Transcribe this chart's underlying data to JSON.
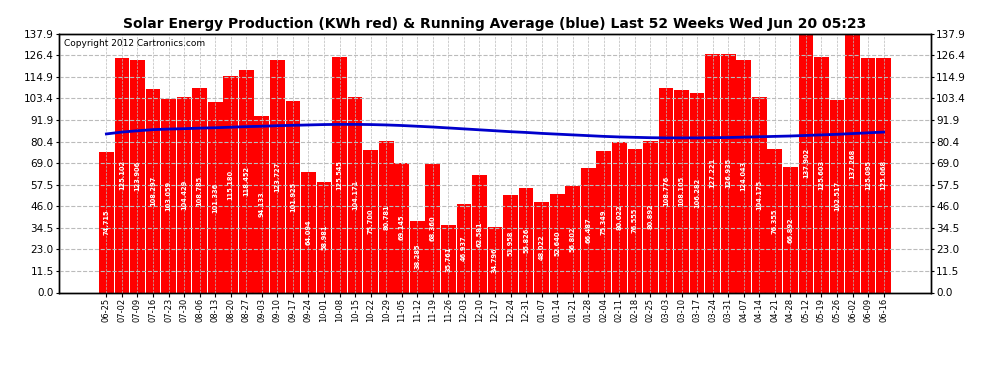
{
  "title": "Solar Energy Production (KWh red) & Running Average (blue) Last 52 Weeks Wed Jun 20 05:23",
  "copyright": "Copyright 2012 Cartronics.com",
  "bar_color": "#ff0000",
  "avg_line_color": "#0000cc",
  "background_color": "#ffffff",
  "plot_bg_color": "#ffffff",
  "grid_color": "#bbbbbb",
  "ylim": [
    0.0,
    137.9
  ],
  "yticks": [
    0.0,
    11.5,
    23.0,
    34.5,
    46.0,
    57.5,
    69.0,
    80.4,
    91.9,
    103.4,
    114.9,
    126.4,
    137.9
  ],
  "categories": [
    "06-25",
    "07-02",
    "07-09",
    "07-16",
    "07-23",
    "07-30",
    "08-06",
    "08-13",
    "08-20",
    "08-27",
    "09-03",
    "09-10",
    "09-17",
    "09-24",
    "10-01",
    "10-08",
    "10-15",
    "10-22",
    "10-29",
    "11-05",
    "11-12",
    "11-19",
    "11-26",
    "12-03",
    "12-10",
    "12-17",
    "12-24",
    "12-31",
    "01-07",
    "01-14",
    "01-21",
    "01-28",
    "02-04",
    "02-11",
    "02-18",
    "02-25",
    "03-03",
    "03-10",
    "03-17",
    "03-24",
    "03-31",
    "04-07",
    "04-14",
    "04-21",
    "04-28",
    "05-12",
    "05-19",
    "05-26",
    "06-02",
    "06-09",
    "06-16"
  ],
  "values": [
    74.715,
    125.102,
    123.906,
    108.297,
    103.059,
    104.429,
    108.785,
    101.336,
    115.18,
    118.452,
    94.133,
    123.727,
    101.925,
    64.094,
    58.981,
    125.545,
    104.171,
    75.7,
    80.781,
    69.145,
    38.285,
    68.36,
    35.761,
    46.937,
    62.581,
    34.796,
    51.958,
    55.826,
    48.022,
    52.64,
    56.802,
    66.487,
    75.349,
    80.022,
    76.555,
    80.892,
    108.776,
    108.105,
    106.282,
    127.221,
    126.935,
    124.043,
    104.175,
    76.355,
    66.892,
    137.902,
    125.603,
    102.517,
    137.268,
    125.095,
    125.068
  ],
  "bar_value_labels": [
    "74.715",
    "125.102",
    "123.906",
    "108.297",
    "103.059",
    "104.429",
    "108.785",
    "101.336",
    "115.180",
    "118.452",
    "94.133",
    "123.727",
    "101.925",
    "64.094",
    "58.981",
    "125.545",
    "104.171",
    "75.700",
    "80.781",
    "69.145",
    "38.285",
    "68.360",
    "35.761",
    "46.937",
    "62.581",
    "34.796",
    "51.958",
    "55.826",
    "48.022",
    "52.640",
    "56.802",
    "66.487",
    "75.349",
    "80.022",
    "76.555",
    "80.892",
    "108.776",
    "108.105",
    "106.282",
    "127.221",
    "126.935",
    "124.043",
    "104.175",
    "76.355",
    "66.892",
    "137.902",
    "125.603",
    "102.517",
    "137.268",
    "125.095",
    "125.068"
  ],
  "running_avg": [
    84.5,
    85.5,
    86.2,
    86.8,
    87.1,
    87.3,
    87.6,
    87.8,
    88.1,
    88.4,
    88.6,
    88.9,
    89.1,
    89.3,
    89.5,
    89.6,
    89.6,
    89.5,
    89.3,
    89.0,
    88.6,
    88.2,
    87.7,
    87.2,
    86.7,
    86.2,
    85.7,
    85.3,
    84.8,
    84.4,
    84.0,
    83.6,
    83.2,
    82.9,
    82.7,
    82.5,
    82.4,
    82.4,
    82.4,
    82.5,
    82.6,
    82.8,
    83.0,
    83.2,
    83.4,
    83.7,
    84.0,
    84.3,
    84.7,
    85.1,
    85.5
  ]
}
